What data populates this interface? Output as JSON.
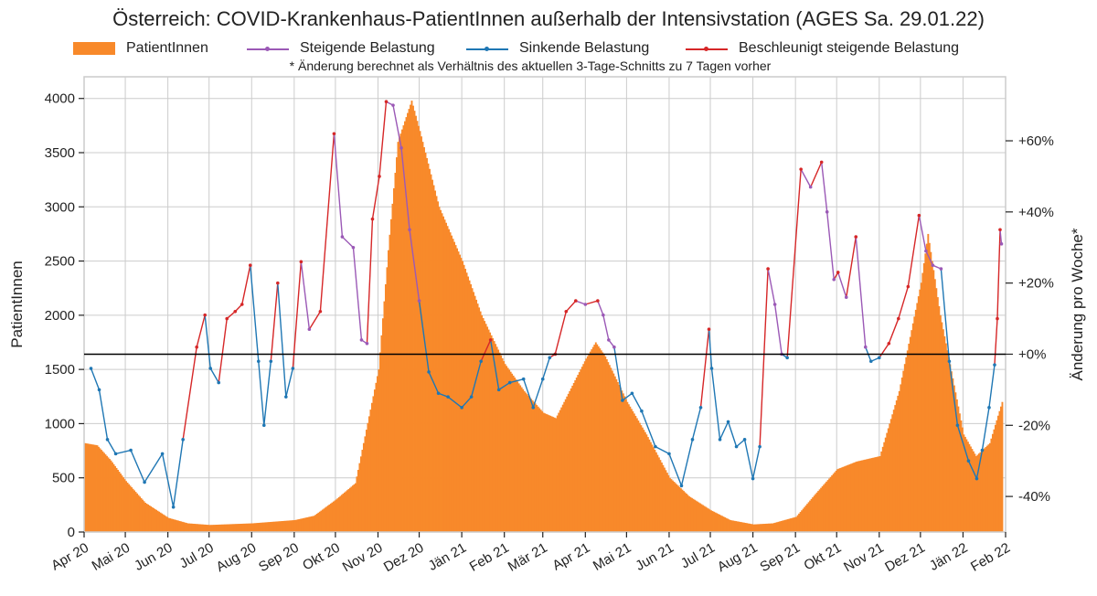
{
  "title": "Österreich: COVID-Krankenhaus-PatientInnen außerhalb der Intensivstation (AGES Sa. 29.01.22)",
  "note": "* Änderung berechnet als Verhältnis des aktuellen 3-Tage-Schnitts zu 7 Tagen vorher",
  "legend": [
    {
      "label": "PatientInnen",
      "color": "#f8892a",
      "kind": "bar"
    },
    {
      "label": "Steigende Belastung",
      "color": "#9b59b6",
      "kind": "line"
    },
    {
      "label": "Sinkende Belastung",
      "color": "#1f77b4",
      "kind": "line"
    },
    {
      "label": "Beschleunigt steigende Belastung",
      "color": "#d62728",
      "kind": "line"
    }
  ],
  "colors": {
    "bars": "#f8892a",
    "rising": "#9b59b6",
    "falling": "#1f77b4",
    "accel": "#d62728",
    "zero_line": "#000000",
    "grid": "#cccccc"
  },
  "chart_data": {
    "type": "bar",
    "ylabel": "PatientInnen",
    "y2label": "Änderung pro Woche*",
    "ylim": [
      0,
      4200
    ],
    "y2lim": [
      -50,
      78
    ],
    "yticks": [
      "0",
      "500",
      "1000",
      "1500",
      "2000",
      "2500",
      "3000",
      "3500",
      "4000"
    ],
    "y2ticks": [
      "-40%",
      "-20%",
      "+0%",
      "+20%",
      "+40%",
      "+60%"
    ],
    "y2tick_values": [
      -40,
      -20,
      0,
      20,
      40,
      60
    ],
    "grid": true,
    "legend_position": "top",
    "x_tick_labels": [
      "Apr 20",
      "Mai 20",
      "Jun 20",
      "Jul 20",
      "Aug 20",
      "Sep 20",
      "Okt 20",
      "Nov 20",
      "Dez 20",
      "Jän 21",
      "Feb 21",
      "Mär 21",
      "Apr 21",
      "Mai 21",
      "Jun 21",
      "Jul 21",
      "Aug 21",
      "Sep 21",
      "Okt 21",
      "Nov 21",
      "Dez 21",
      "Jän 22",
      "Feb 22"
    ],
    "x_start": "2020-04-01",
    "x_end": "2022-02-01",
    "series_bars": {
      "name": "PatientInnen",
      "points": [
        [
          "2020-04-01",
          820
        ],
        [
          "2020-04-10",
          800
        ],
        [
          "2020-04-20",
          660
        ],
        [
          "2020-05-01",
          470
        ],
        [
          "2020-05-15",
          270
        ],
        [
          "2020-06-01",
          130
        ],
        [
          "2020-06-15",
          80
        ],
        [
          "2020-07-01",
          65
        ],
        [
          "2020-08-01",
          80
        ],
        [
          "2020-09-01",
          110
        ],
        [
          "2020-09-15",
          150
        ],
        [
          "2020-10-01",
          300
        ],
        [
          "2020-10-15",
          450
        ],
        [
          "2020-11-01",
          1500
        ],
        [
          "2020-11-08",
          2600
        ],
        [
          "2020-11-15",
          3600
        ],
        [
          "2020-11-25",
          3980
        ],
        [
          "2020-12-01",
          3700
        ],
        [
          "2020-12-15",
          3000
        ],
        [
          "2021-01-01",
          2500
        ],
        [
          "2021-01-15",
          2000
        ],
        [
          "2021-02-01",
          1550
        ],
        [
          "2021-02-15",
          1300
        ],
        [
          "2021-03-01",
          1100
        ],
        [
          "2021-03-10",
          1050
        ],
        [
          "2021-03-20",
          1300
        ],
        [
          "2021-04-01",
          1600
        ],
        [
          "2021-04-08",
          1750
        ],
        [
          "2021-04-15",
          1620
        ],
        [
          "2021-05-01",
          1200
        ],
        [
          "2021-05-15",
          900
        ],
        [
          "2021-06-01",
          500
        ],
        [
          "2021-06-15",
          330
        ],
        [
          "2021-07-01",
          200
        ],
        [
          "2021-07-15",
          110
        ],
        [
          "2021-08-01",
          70
        ],
        [
          "2021-08-15",
          80
        ],
        [
          "2021-09-01",
          140
        ],
        [
          "2021-09-15",
          350
        ],
        [
          "2021-10-01",
          580
        ],
        [
          "2021-10-15",
          650
        ],
        [
          "2021-11-01",
          700
        ],
        [
          "2021-11-15",
          1300
        ],
        [
          "2021-12-01",
          2300
        ],
        [
          "2021-12-06",
          2750
        ],
        [
          "2021-12-15",
          2000
        ],
        [
          "2022-01-01",
          900
        ],
        [
          "2022-01-10",
          700
        ],
        [
          "2022-01-20",
          820
        ],
        [
          "2022-01-29",
          1200
        ]
      ]
    },
    "series_change": {
      "name": "Änderung pro Woche*",
      "points": [
        [
          "2020-04-06",
          -4
        ],
        [
          "2020-04-12",
          -10
        ],
        [
          "2020-04-18",
          -24
        ],
        [
          "2020-04-24",
          -28
        ],
        [
          "2020-05-05",
          -27
        ],
        [
          "2020-05-15",
          -36
        ],
        [
          "2020-05-28",
          -28
        ],
        [
          "2020-06-05",
          -43
        ],
        [
          "2020-06-12",
          -24
        ],
        [
          "2020-06-22",
          2
        ],
        [
          "2020-06-28",
          11
        ],
        [
          "2020-07-02",
          -4
        ],
        [
          "2020-07-08",
          -8
        ],
        [
          "2020-07-14",
          10
        ],
        [
          "2020-07-20",
          12
        ],
        [
          "2020-07-25",
          14
        ],
        [
          "2020-07-31",
          25
        ],
        [
          "2020-08-06",
          -2
        ],
        [
          "2020-08-10",
          -20
        ],
        [
          "2020-08-15",
          -2
        ],
        [
          "2020-08-20",
          20
        ],
        [
          "2020-08-26",
          -12
        ],
        [
          "2020-08-31",
          -4
        ],
        [
          "2020-09-06",
          26
        ],
        [
          "2020-09-12",
          7
        ],
        [
          "2020-09-20",
          12
        ],
        [
          "2020-09-30",
          62
        ],
        [
          "2020-10-06",
          33
        ],
        [
          "2020-10-14",
          30
        ],
        [
          "2020-10-20",
          4
        ],
        [
          "2020-10-24",
          3
        ],
        [
          "2020-10-28",
          38
        ],
        [
          "2020-11-02",
          50
        ],
        [
          "2020-11-07",
          71
        ],
        [
          "2020-11-12",
          70
        ],
        [
          "2020-11-18",
          58
        ],
        [
          "2020-11-24",
          35
        ],
        [
          "2020-12-01",
          15
        ],
        [
          "2020-12-08",
          -5
        ],
        [
          "2020-12-15",
          -11
        ],
        [
          "2020-12-22",
          -12
        ],
        [
          "2021-01-01",
          -15
        ],
        [
          "2021-01-08",
          -12
        ],
        [
          "2021-01-15",
          -2
        ],
        [
          "2021-01-22",
          4
        ],
        [
          "2021-01-28",
          -10
        ],
        [
          "2021-02-05",
          -8
        ],
        [
          "2021-02-15",
          -7
        ],
        [
          "2021-02-22",
          -15
        ],
        [
          "2021-03-01",
          -7
        ],
        [
          "2021-03-06",
          -1
        ],
        [
          "2021-03-10",
          0
        ],
        [
          "2021-03-18",
          12
        ],
        [
          "2021-03-25",
          15
        ],
        [
          "2021-04-01",
          14
        ],
        [
          "2021-04-10",
          15
        ],
        [
          "2021-04-14",
          11
        ],
        [
          "2021-04-18",
          4
        ],
        [
          "2021-04-22",
          2
        ],
        [
          "2021-04-28",
          -13
        ],
        [
          "2021-05-05",
          -11
        ],
        [
          "2021-05-12",
          -16
        ],
        [
          "2021-05-22",
          -26
        ],
        [
          "2021-06-01",
          -28
        ],
        [
          "2021-06-10",
          -37
        ],
        [
          "2021-06-18",
          -24
        ],
        [
          "2021-06-24",
          -15
        ],
        [
          "2021-06-30",
          7
        ],
        [
          "2021-07-02",
          -4
        ],
        [
          "2021-07-08",
          -24
        ],
        [
          "2021-07-14",
          -19
        ],
        [
          "2021-07-20",
          -26
        ],
        [
          "2021-07-26",
          -24
        ],
        [
          "2021-08-01",
          -35
        ],
        [
          "2021-08-06",
          -26
        ],
        [
          "2021-08-12",
          24
        ],
        [
          "2021-08-17",
          14
        ],
        [
          "2021-08-22",
          0
        ],
        [
          "2021-08-26",
          -1
        ],
        [
          "2021-09-05",
          52
        ],
        [
          "2021-09-12",
          47
        ],
        [
          "2021-09-20",
          54
        ],
        [
          "2021-09-24",
          40
        ],
        [
          "2021-09-29",
          21
        ],
        [
          "2021-10-02",
          23
        ],
        [
          "2021-10-08",
          16
        ],
        [
          "2021-10-15",
          33
        ],
        [
          "2021-10-22",
          2
        ],
        [
          "2021-10-26",
          -2
        ],
        [
          "2021-11-01",
          -1
        ],
        [
          "2021-11-08",
          3
        ],
        [
          "2021-11-15",
          10
        ],
        [
          "2021-11-22",
          19
        ],
        [
          "2021-11-30",
          39
        ],
        [
          "2021-12-05",
          29
        ],
        [
          "2021-12-10",
          25
        ],
        [
          "2021-12-16",
          24
        ],
        [
          "2021-12-22",
          -2
        ],
        [
          "2021-12-28",
          -20
        ],
        [
          "2022-01-05",
          -30
        ],
        [
          "2022-01-11",
          -35
        ],
        [
          "2022-01-15",
          -27
        ],
        [
          "2022-01-20",
          -15
        ],
        [
          "2022-01-24",
          -3
        ],
        [
          "2022-01-26",
          10
        ],
        [
          "2022-01-28",
          35
        ],
        [
          "2022-01-29",
          31
        ]
      ]
    }
  }
}
